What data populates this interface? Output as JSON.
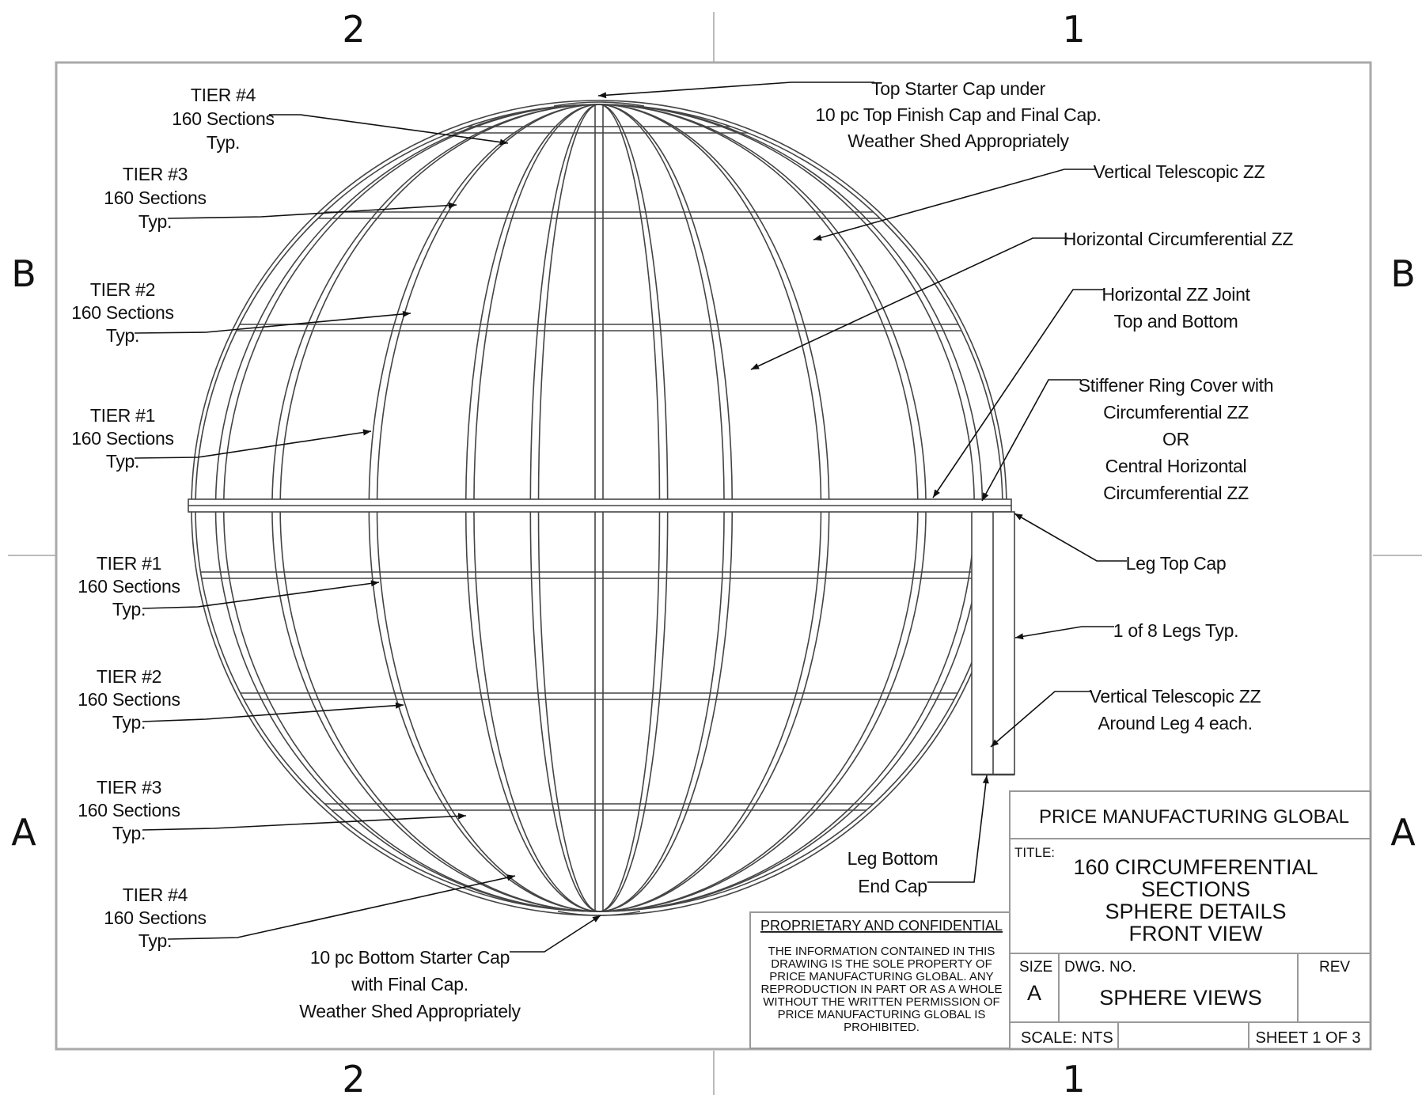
{
  "zones": {
    "top": [
      "2",
      "1"
    ],
    "bottom": [
      "2",
      "1"
    ],
    "left": [
      "B",
      "A"
    ],
    "right": [
      "B",
      "A"
    ]
  },
  "callouts": {
    "tier4_top": [
      "TIER #4",
      "160 Sections",
      "Typ."
    ],
    "tier3_top": [
      "TIER #3",
      "160 Sections",
      "Typ."
    ],
    "tier2_top": [
      "TIER #2",
      "160 Sections",
      "Typ."
    ],
    "tier1_top": [
      "TIER #1",
      "160 Sections",
      "Typ."
    ],
    "tier1_bot": [
      "TIER #1",
      "160 Sections",
      "Typ."
    ],
    "tier2_bot": [
      "TIER #2",
      "160 Sections",
      "Typ."
    ],
    "tier3_bot": [
      "TIER #3",
      "160 Sections",
      "Typ."
    ],
    "tier4_bot": [
      "TIER #4",
      "160 Sections",
      "Typ."
    ],
    "top_cap": [
      "Top Starter Cap under",
      "10 pc Top Finish Cap and Final Cap.",
      "Weather Shed Appropriately"
    ],
    "vertical_zz": [
      "Vertical Telescopic ZZ"
    ],
    "horizontal_zz": [
      "Horizontal Circumferential ZZ"
    ],
    "horizontal_joint": [
      "Horizontal ZZ Joint",
      "Top and Bottom"
    ],
    "stiffener": [
      "Stiffener Ring Cover with",
      "Circumferential ZZ",
      "OR",
      "Central Horizontal",
      "Circumferential ZZ"
    ],
    "leg_top_cap": [
      "Leg Top Cap"
    ],
    "legs": [
      "1 of 8 Legs Typ."
    ],
    "leg_vertical_zz": [
      "Vertical Telescopic ZZ",
      "Around Leg 4 each."
    ],
    "leg_bottom": [
      "Leg Bottom",
      "End Cap"
    ],
    "bottom_cap": [
      "10 pc Bottom Starter Cap",
      "with Final Cap.",
      "Weather Shed Appropriately"
    ]
  },
  "title_block": {
    "company": "PRICE MANUFACTURING GLOBAL",
    "title_label": "TITLE:",
    "title_lines": [
      "160 CIRCUMFERENTIAL",
      "SECTIONS",
      "SPHERE DETAILS",
      "FRONT VIEW"
    ],
    "size_label": "SIZE",
    "size_value": "A",
    "dwg_label": "DWG.  NO.",
    "dwg_value": "SPHERE VIEWS",
    "rev_label": "REV",
    "scale": "SCALE: NTS",
    "sheet": "SHEET 1 OF 3"
  },
  "proprietary": {
    "heading": "PROPRIETARY AND CONFIDENTIAL",
    "lines": [
      "THE INFORMATION CONTAINED IN THIS",
      "DRAWING IS THE SOLE PROPERTY OF",
      "PRICE MANUFACTURING GLOBAL.  ANY",
      "REPRODUCTION IN PART OR AS A WHOLE",
      "WITHOUT THE WRITTEN PERMISSION OF",
      "PRICE MANUFACTURING GLOBAL IS",
      "PROHIBITED."
    ]
  }
}
